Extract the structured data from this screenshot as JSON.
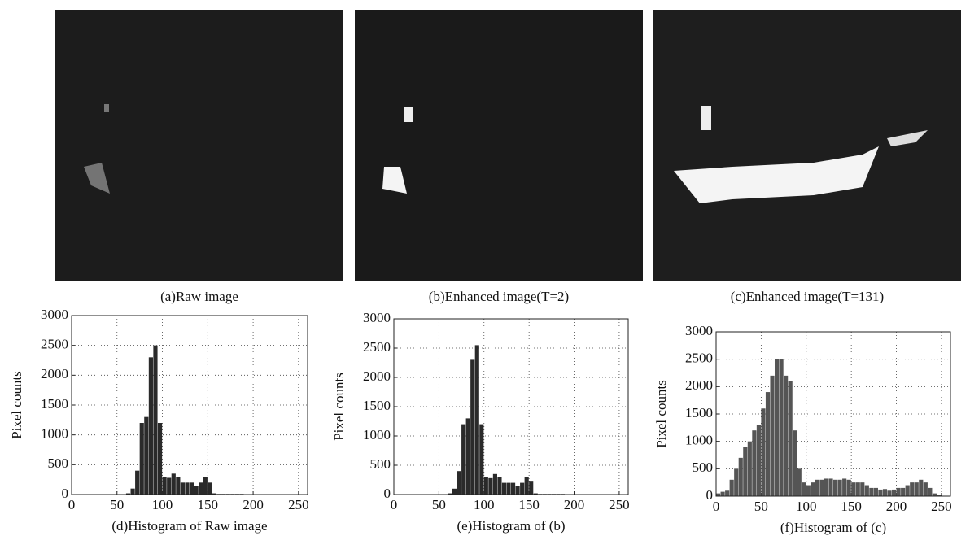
{
  "images": [
    {
      "caption": "(a)Raw image"
    },
    {
      "caption": "(b)Enhanced image(T=2)"
    },
    {
      "caption": "(c)Enhanced image(T=131)"
    }
  ],
  "chart_data": [
    {
      "type": "histogram",
      "caption": "(d)Histogram of Raw image",
      "y_label": "Pixel counts",
      "color": "#2a2a2a",
      "bins": [
        0,
        5,
        10,
        15,
        20,
        25,
        30,
        35,
        40,
        45,
        50,
        55,
        60,
        65,
        70,
        75,
        80,
        85,
        90,
        95,
        100,
        105,
        110,
        115,
        120,
        125,
        130,
        135,
        140,
        145,
        150,
        155,
        160,
        165,
        170,
        175,
        180,
        185,
        190,
        195,
        200,
        205,
        210,
        215,
        220,
        225,
        230,
        235,
        240,
        245,
        250,
        255
      ],
      "values": [
        0,
        0,
        0,
        0,
        0,
        0,
        0,
        0,
        0,
        0,
        0,
        0,
        20,
        100,
        400,
        1200,
        1300,
        2300,
        2500,
        1200,
        300,
        280,
        350,
        300,
        200,
        200,
        200,
        150,
        200,
        300,
        200,
        20,
        10,
        10,
        10,
        10,
        10,
        10,
        5,
        5,
        0,
        0,
        0,
        0,
        0,
        0,
        0,
        0,
        0,
        0,
        0
      ],
      "xlim": [
        0,
        260
      ],
      "ylim": [
        0,
        3000
      ],
      "xticks": [
        0,
        50,
        100,
        150,
        200,
        250
      ],
      "yticks": [
        0,
        500,
        1000,
        1500,
        2000,
        2500,
        3000
      ],
      "grid": true
    },
    {
      "type": "histogram",
      "caption": "(e)Histogram of (b)",
      "y_label": "Pixel counts",
      "color": "#2a2a2a",
      "bins": [
        0,
        5,
        10,
        15,
        20,
        25,
        30,
        35,
        40,
        45,
        50,
        55,
        60,
        65,
        70,
        75,
        80,
        85,
        90,
        95,
        100,
        105,
        110,
        115,
        120,
        125,
        130,
        135,
        140,
        145,
        150,
        155,
        160,
        165,
        170,
        175,
        180,
        185,
        190,
        195,
        200,
        205,
        210,
        215,
        220,
        225,
        230,
        235,
        240,
        245,
        250,
        255
      ],
      "values": [
        0,
        0,
        0,
        0,
        0,
        0,
        0,
        0,
        0,
        0,
        0,
        0,
        20,
        100,
        400,
        1200,
        1300,
        2300,
        2550,
        1200,
        300,
        280,
        350,
        300,
        200,
        200,
        200,
        150,
        200,
        300,
        220,
        20,
        10,
        10,
        10,
        10,
        10,
        10,
        5,
        5,
        0,
        0,
        0,
        0,
        0,
        0,
        0,
        0,
        0,
        0,
        0
      ],
      "xlim": [
        0,
        260
      ],
      "ylim": [
        0,
        3000
      ],
      "xticks": [
        0,
        50,
        100,
        150,
        200,
        250
      ],
      "yticks": [
        0,
        500,
        1000,
        1500,
        2000,
        2500,
        3000
      ],
      "grid": true
    },
    {
      "type": "histogram",
      "caption": "(f)Histogram of (c)",
      "y_label": "Pixel counts",
      "color": "#555555",
      "bins": [
        0,
        5,
        10,
        15,
        20,
        25,
        30,
        35,
        40,
        45,
        50,
        55,
        60,
        65,
        70,
        75,
        80,
        85,
        90,
        95,
        100,
        105,
        110,
        115,
        120,
        125,
        130,
        135,
        140,
        145,
        150,
        155,
        160,
        165,
        170,
        175,
        180,
        185,
        190,
        195,
        200,
        205,
        210,
        215,
        220,
        225,
        230,
        235,
        240,
        245,
        250,
        255
      ],
      "values": [
        50,
        80,
        100,
        300,
        500,
        700,
        900,
        1000,
        1200,
        1300,
        1600,
        1900,
        2200,
        2500,
        2500,
        2200,
        2100,
        1200,
        500,
        250,
        200,
        250,
        300,
        300,
        320,
        320,
        300,
        300,
        320,
        300,
        250,
        250,
        250,
        200,
        150,
        150,
        120,
        130,
        100,
        120,
        150,
        150,
        200,
        250,
        250,
        300,
        250,
        150,
        50,
        20,
        0
      ],
      "xlim": [
        0,
        260
      ],
      "ylim": [
        0,
        3000
      ],
      "xticks": [
        0,
        50,
        100,
        150,
        200,
        250
      ],
      "yticks": [
        0,
        500,
        1000,
        1500,
        2000,
        2500,
        3000
      ],
      "grid": true
    }
  ]
}
